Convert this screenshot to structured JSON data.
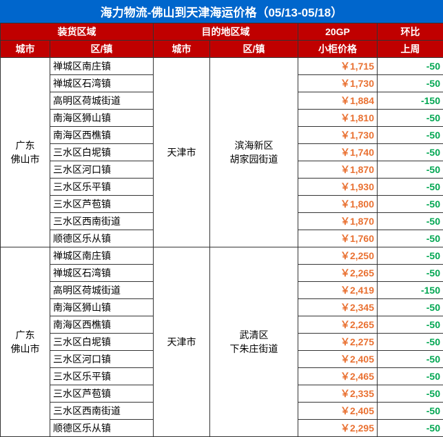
{
  "title": "海力物流-佛山到天津海运价格（05/13-05/18）",
  "headers": {
    "group1": "装货区域",
    "group2": "目的地区域",
    "price_top": "20GP",
    "delta_top": "环比",
    "city": "城市",
    "district": "区/镇",
    "price_sub": "小柜价格",
    "delta_sub": "上周"
  },
  "colors": {
    "title_bg": "#0066cc",
    "header_bg": "#c00000",
    "price_text": "#e97132",
    "delta_text": "#00a651",
    "border": "#333333",
    "bg": "#ffffff"
  },
  "sections": [
    {
      "src_city": "广东\n佛山市",
      "dest_city": "天津市",
      "dest_district": "滨海新区\n胡家园街道",
      "rows": [
        {
          "dist": "禅城区南庄镇",
          "price": "￥1,715",
          "delta": "-50"
        },
        {
          "dist": "禅城区石湾镇",
          "price": "￥1,730",
          "delta": "-50"
        },
        {
          "dist": "高明区荷城街道",
          "price": "￥1,884",
          "delta": "-150"
        },
        {
          "dist": "南海区狮山镇",
          "price": "￥1,810",
          "delta": "-50"
        },
        {
          "dist": "南海区西樵镇",
          "price": "￥1,730",
          "delta": "-50"
        },
        {
          "dist": "三水区白坭镇",
          "price": "￥1,740",
          "delta": "-50"
        },
        {
          "dist": "三水区河口镇",
          "price": "￥1,870",
          "delta": "-50"
        },
        {
          "dist": "三水区乐平镇",
          "price": "￥1,930",
          "delta": "-50"
        },
        {
          "dist": "三水区芦苞镇",
          "price": "￥1,800",
          "delta": "-50"
        },
        {
          "dist": "三水区西南街道",
          "price": "￥1,870",
          "delta": "-50"
        },
        {
          "dist": "顺德区乐从镇",
          "price": "￥1,760",
          "delta": "-50"
        }
      ]
    },
    {
      "src_city": "广东\n佛山市",
      "dest_city": "天津市",
      "dest_district": "武清区\n下朱庄街道",
      "rows": [
        {
          "dist": "禅城区南庄镇",
          "price": "￥2,250",
          "delta": "-50"
        },
        {
          "dist": "禅城区石湾镇",
          "price": "￥2,265",
          "delta": "-50"
        },
        {
          "dist": "高明区荷城街道",
          "price": "￥2,419",
          "delta": "-150"
        },
        {
          "dist": "南海区狮山镇",
          "price": "￥2,345",
          "delta": "-50"
        },
        {
          "dist": "南海区西樵镇",
          "price": "￥2,265",
          "delta": "-50"
        },
        {
          "dist": "三水区白坭镇",
          "price": "￥2,275",
          "delta": "-50"
        },
        {
          "dist": "三水区河口镇",
          "price": "￥2,405",
          "delta": "-50"
        },
        {
          "dist": "三水区乐平镇",
          "price": "￥2,465",
          "delta": "-50"
        },
        {
          "dist": "三水区芦苞镇",
          "price": "￥2,335",
          "delta": "-50"
        },
        {
          "dist": "三水区西南街道",
          "price": "￥2,405",
          "delta": "-50"
        },
        {
          "dist": "顺德区乐从镇",
          "price": "￥2,295",
          "delta": "-50"
        }
      ]
    }
  ]
}
